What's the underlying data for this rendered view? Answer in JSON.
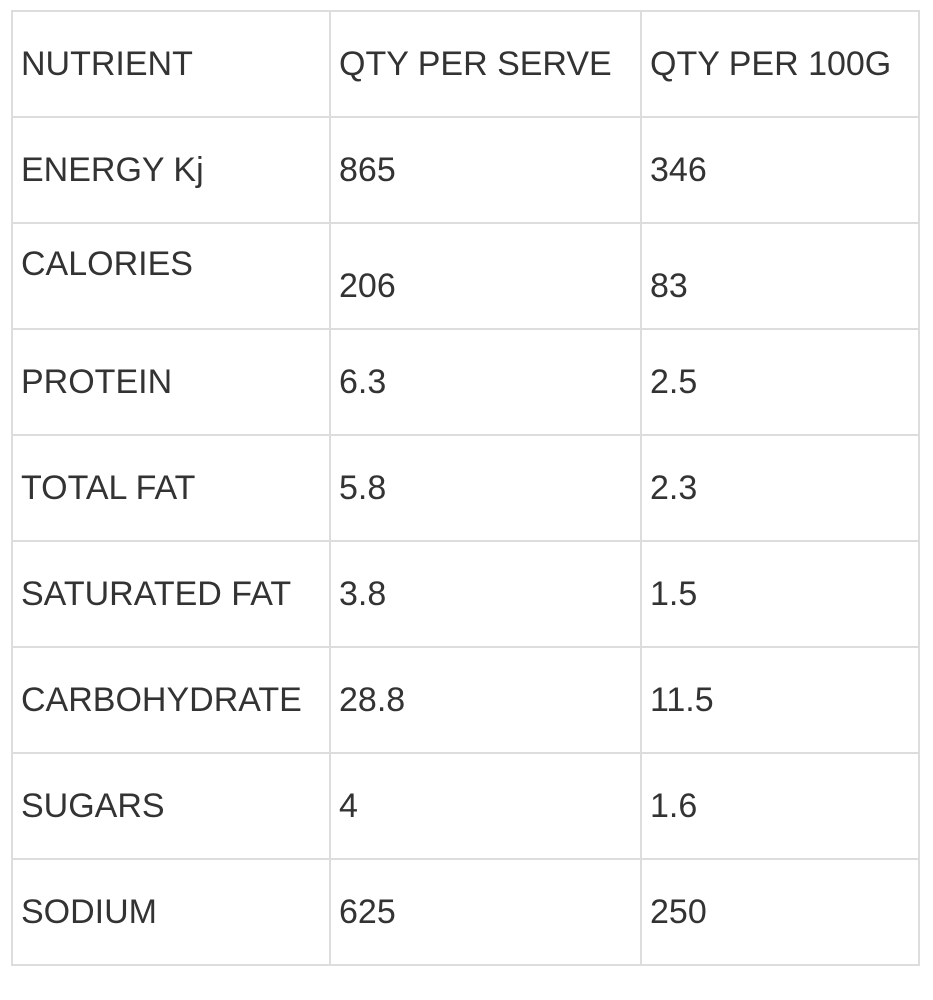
{
  "table": {
    "headers": [
      "NUTRIENT",
      "QTY PER SERVE",
      "QTY PER 100G"
    ],
    "rows": [
      [
        "ENERGY Kj",
        "865",
        "346"
      ],
      [
        "CALORIES",
        "206",
        "83"
      ],
      [
        "PROTEIN",
        "6.3",
        "2.5"
      ],
      [
        "TOTAL FAT",
        "5.8",
        "2.3"
      ],
      [
        "SATURATED FAT",
        "3.8",
        "1.5"
      ],
      [
        "CARBOHYDRATE",
        "28.8",
        "11.5"
      ],
      [
        "SUGARS",
        "4",
        "1.6"
      ],
      [
        "SODIUM",
        "625",
        "250"
      ]
    ]
  }
}
